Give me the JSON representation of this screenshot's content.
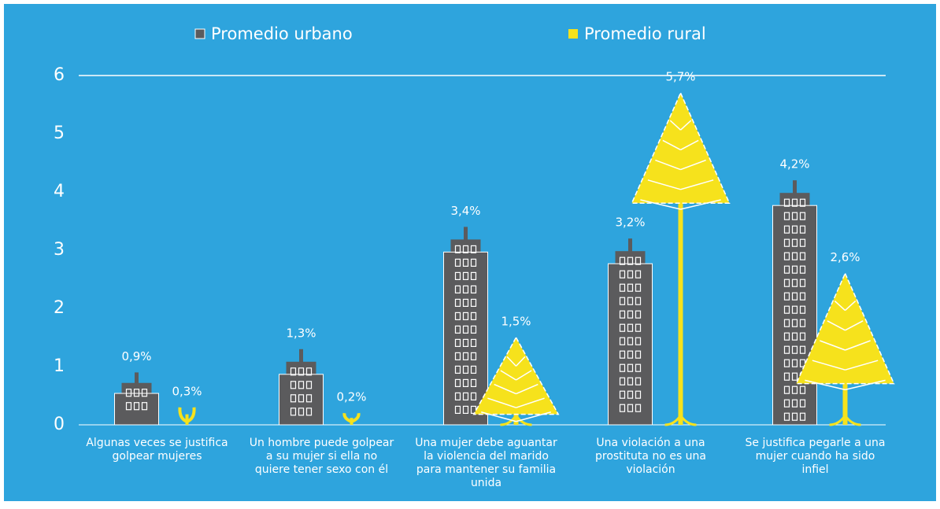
{
  "chart_data": {
    "type": "pictorial-bar",
    "categories": [
      "Algunas veces se justifica golpear mujeres",
      "Un hombre puede golpear a su mujer si ella no quiere tener sexo con él",
      "Una mujer debe aguantar la violencia del marido para mantener su familia unida",
      "Una violación a una prostituta no es una violación",
      "Se justifica pegarle a una mujer cuando ha sido infiel"
    ],
    "series": [
      {
        "name": "Promedio urbano",
        "color": "#5b5b5d",
        "values": [
          0.9,
          1.3,
          3.4,
          3.2,
          4.2
        ],
        "value_labels": [
          "0,9%",
          "1,3%",
          "3,4%",
          "3,2%",
          "4,2%"
        ]
      },
      {
        "name": "Promedio rural",
        "color": "#f6e21c",
        "values": [
          0.3,
          0.2,
          1.5,
          5.7,
          2.6
        ],
        "value_labels": [
          "0,3%",
          "0,2%",
          "1,5%",
          "5,7%",
          "2,6%"
        ]
      }
    ],
    "ylim": [
      0,
      6
    ],
    "yticks": [
      0,
      1,
      2,
      3,
      4,
      5,
      6
    ]
  }
}
